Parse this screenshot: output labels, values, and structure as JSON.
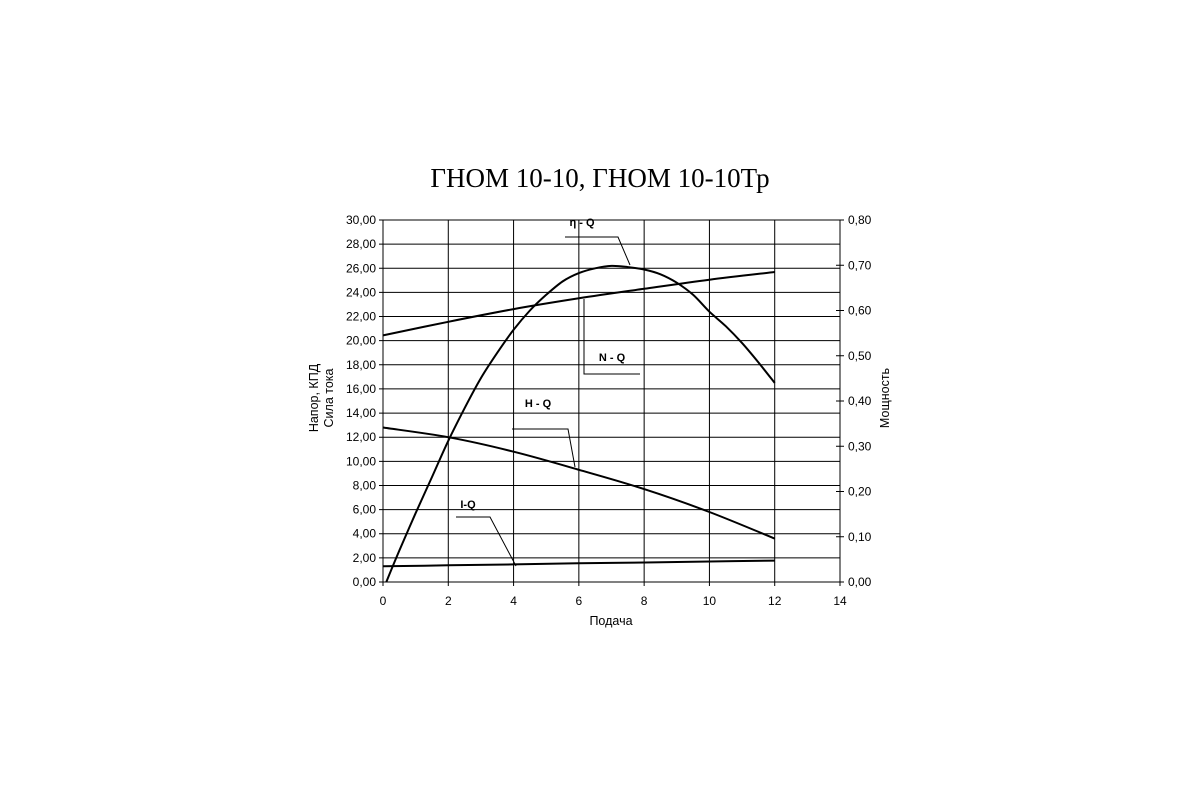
{
  "chart_data": {
    "type": "line",
    "title": "ГНОМ 10-10, ГНОМ 10-10Тр",
    "xlabel": "Подача",
    "ylabel_left": [
      "Напор, КПД",
      "Сила тока"
    ],
    "ylabel_right": "Мощность",
    "xlim": [
      0,
      14
    ],
    "ylim_left": [
      0,
      30
    ],
    "ylim_right": [
      0,
      0.8
    ],
    "x_ticks": [
      "0",
      "2",
      "4",
      "6",
      "8",
      "10",
      "12",
      "14"
    ],
    "y_left_ticks": [
      "0,00",
      "2,00",
      "4,00",
      "6,00",
      "8,00",
      "10,00",
      "12,00",
      "14,00",
      "16,00",
      "18,00",
      "20,00",
      "22,00",
      "24,00",
      "26,00",
      "28,00",
      "30,00"
    ],
    "y_right_ticks": [
      "0,00",
      "0,10",
      "0,20",
      "0,30",
      "0,40",
      "0,50",
      "0,60",
      "0,70",
      "0,80"
    ],
    "grid": true,
    "series": [
      {
        "name": "η - Q",
        "axis": "left",
        "x": [
          0.1,
          0.5,
          1,
          1.5,
          2,
          2.5,
          3,
          3.5,
          4,
          4.5,
          5,
          5.5,
          6,
          6.5,
          7,
          7.5,
          8,
          8.5,
          9,
          9.5,
          10,
          10.5,
          11,
          11.5,
          12
        ],
        "y": [
          0,
          2.6,
          5.7,
          8.7,
          11.7,
          14.4,
          16.9,
          19.0,
          20.9,
          22.5,
          23.8,
          24.9,
          25.6,
          26.0,
          26.2,
          26.1,
          25.9,
          25.5,
          24.8,
          23.8,
          22.4,
          21.2,
          19.8,
          18.2,
          16.5
        ]
      },
      {
        "name": "N - Q",
        "axis": "right",
        "x": [
          0,
          2,
          4,
          6,
          8,
          10,
          12
        ],
        "y": [
          0.545,
          0.575,
          0.603,
          0.627,
          0.648,
          0.668,
          0.685
        ]
      },
      {
        "name": "H - Q",
        "axis": "left",
        "x": [
          0,
          2,
          4,
          6,
          8,
          10,
          12
        ],
        "y": [
          12.8,
          12.0,
          10.8,
          9.3,
          7.7,
          5.8,
          3.6
        ]
      },
      {
        "name": "I-Q",
        "axis": "left",
        "x": [
          0,
          2,
          4,
          6,
          8,
          10,
          12
        ],
        "y": [
          1.3,
          1.38,
          1.46,
          1.55,
          1.62,
          1.7,
          1.77
        ]
      }
    ]
  }
}
